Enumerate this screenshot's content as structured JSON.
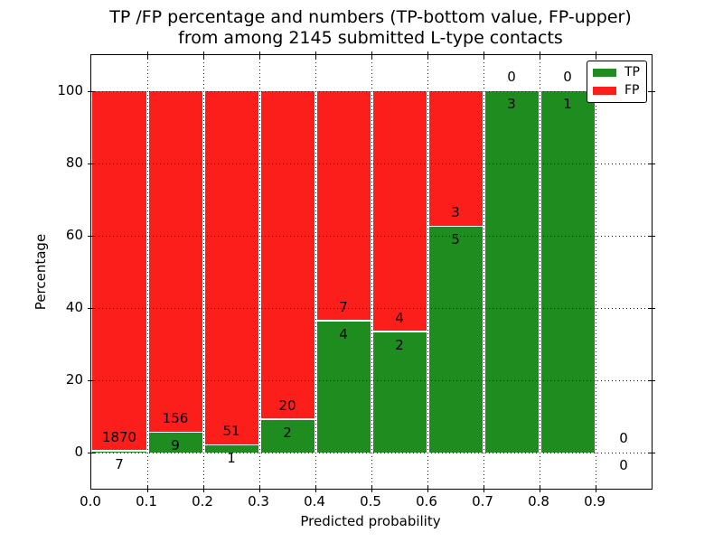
{
  "chart_data": {
    "type": "bar",
    "stacked": true,
    "units": "percent",
    "title": "TP /FP percentage and numbers (TP-bottom value, FP-upper)",
    "subtitle": "from among 2145 submitted L-type contacts",
    "xlabel": "Predicted probability",
    "ylabel": "Percentage",
    "xlim": [
      0.0,
      1.0
    ],
    "ylim": [
      -10,
      110
    ],
    "x_tick_labels": [
      "0.0",
      "0.1",
      "0.2",
      "0.3",
      "0.4",
      "0.5",
      "0.6",
      "0.7",
      "0.8",
      "0.9"
    ],
    "y_tick_values": [
      0,
      20,
      40,
      60,
      80,
      100
    ],
    "grid": "dotted",
    "legend_position": "upper right",
    "total_submitted": 2145,
    "series": [
      {
        "name": "TP",
        "color": "#1e8c1e"
      },
      {
        "name": "FP",
        "color": "#fc1e1a"
      }
    ],
    "bins": [
      {
        "x_start": 0.0,
        "x_end": 0.1,
        "tp": 7,
        "fp": 1870
      },
      {
        "x_start": 0.1,
        "x_end": 0.2,
        "tp": 9,
        "fp": 156
      },
      {
        "x_start": 0.2,
        "x_end": 0.3,
        "tp": 1,
        "fp": 51
      },
      {
        "x_start": 0.3,
        "x_end": 0.4,
        "tp": 2,
        "fp": 20
      },
      {
        "x_start": 0.4,
        "x_end": 0.5,
        "tp": 4,
        "fp": 7
      },
      {
        "x_start": 0.5,
        "x_end": 0.6,
        "tp": 2,
        "fp": 4
      },
      {
        "x_start": 0.6,
        "x_end": 0.7,
        "tp": 5,
        "fp": 3
      },
      {
        "x_start": 0.7,
        "x_end": 0.8,
        "tp": 3,
        "fp": 0
      },
      {
        "x_start": 0.8,
        "x_end": 0.9,
        "tp": 1,
        "fp": 0
      },
      {
        "x_start": 0.9,
        "x_end": 1.0,
        "tp": 0,
        "fp": 0
      }
    ]
  }
}
